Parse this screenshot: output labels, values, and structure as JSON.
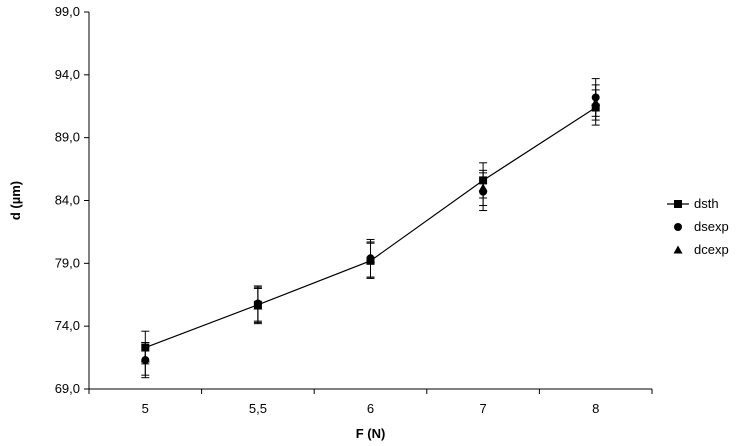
{
  "chart_data": {
    "type": "line",
    "xlabel": "F (N)",
    "ylabel": "d (µm)",
    "categories": [
      "5",
      "5,5",
      "6",
      "7",
      "8"
    ],
    "yticks": [
      "69,0",
      "74,0",
      "79,0",
      "84,0",
      "89,0",
      "94,0",
      "99,0"
    ],
    "ylim": [
      69,
      99
    ],
    "grid": false,
    "legend_position": "right",
    "series": [
      {
        "name": "dsth",
        "marker": "square",
        "line": true,
        "values": [
          72.3,
          75.7,
          79.2,
          85.6,
          91.4
        ],
        "error": [
          1.3,
          1.4,
          1.4,
          1.4,
          1.4
        ]
      },
      {
        "name": "dsexp",
        "marker": "circle",
        "line": false,
        "values": [
          71.3,
          75.8,
          79.4,
          84.7,
          92.2
        ],
        "error": [
          1.4,
          1.4,
          1.5,
          1.5,
          1.5
        ]
      },
      {
        "name": "dcexp",
        "marker": "triangle",
        "line": false,
        "values": [
          71.4,
          75.6,
          79.3,
          85.0,
          91.8
        ],
        "error": [
          1.3,
          1.4,
          1.4,
          1.4,
          1.4
        ]
      }
    ],
    "colors": {
      "marker": "#000000",
      "line": "#000000",
      "axis": "#000000"
    }
  }
}
